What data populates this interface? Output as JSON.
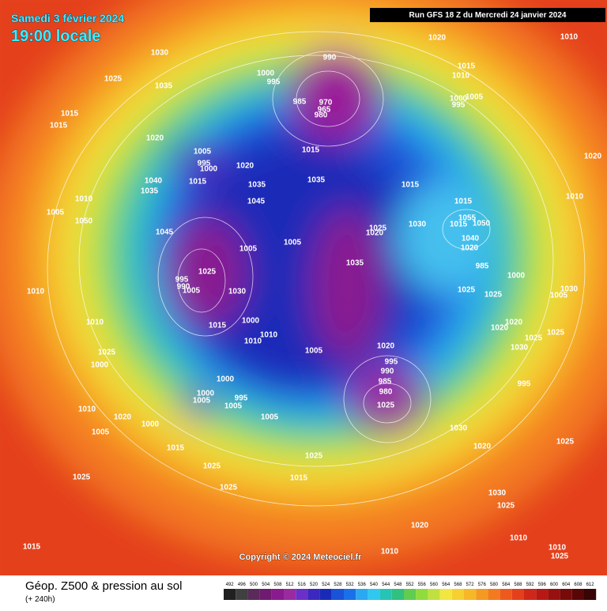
{
  "header": {
    "date": "Samedi 3 février 2024",
    "time": "19:00 locale",
    "run": "Run GFS 18 Z du Mercredi 24 janvier 2024"
  },
  "footer": {
    "title": "Géop. Z500 & pression au sol",
    "lead": "(+ 240h)",
    "copyright": "Copyright © 2024 Meteociel.fr"
  },
  "colorbar": {
    "values": [
      492,
      496,
      500,
      504,
      508,
      512,
      516,
      520,
      524,
      528,
      532,
      536,
      540,
      544,
      548,
      552,
      556,
      560,
      564,
      568,
      572,
      576,
      580,
      584,
      588,
      592,
      596,
      600,
      604,
      608,
      612
    ]
  },
  "isobar_labels": [
    1030,
    1025,
    1035,
    1020,
    1010,
    990,
    1015,
    1010,
    1000,
    995,
    1005,
    1000,
    995,
    985,
    970,
    965,
    980,
    1015,
    1015,
    1020,
    1015,
    1005,
    995,
    1000,
    1020,
    1015,
    1040,
    1035,
    1035,
    1015,
    1020,
    1035,
    1045,
    1015,
    1010,
    1010,
    1005,
    1050,
    1055,
    1050,
    1015,
    1030,
    1025,
    1020,
    1045,
    1040,
    1020,
    1005,
    1005,
    1035,
    985,
    1025,
    1000,
    995,
    990,
    1005,
    1030,
    1025,
    1025,
    1010,
    1005,
    1030,
    1010,
    1000,
    1015,
    1020,
    1020,
    1025,
    1025,
    1010,
    1010,
    1005,
    1020,
    1030,
    1025,
    1000,
    995,
    990,
    985,
    980,
    1025,
    995,
    1000,
    1000,
    995,
    1005,
    1005,
    1010,
    1020,
    1000,
    1005,
    1005,
    1030,
    1020,
    1025,
    1015,
    1025,
    1025,
    1015,
    1025,
    1025,
    1030,
    1025,
    1020,
    1010,
    1015,
    1010,
    1025,
    1010
  ]
}
